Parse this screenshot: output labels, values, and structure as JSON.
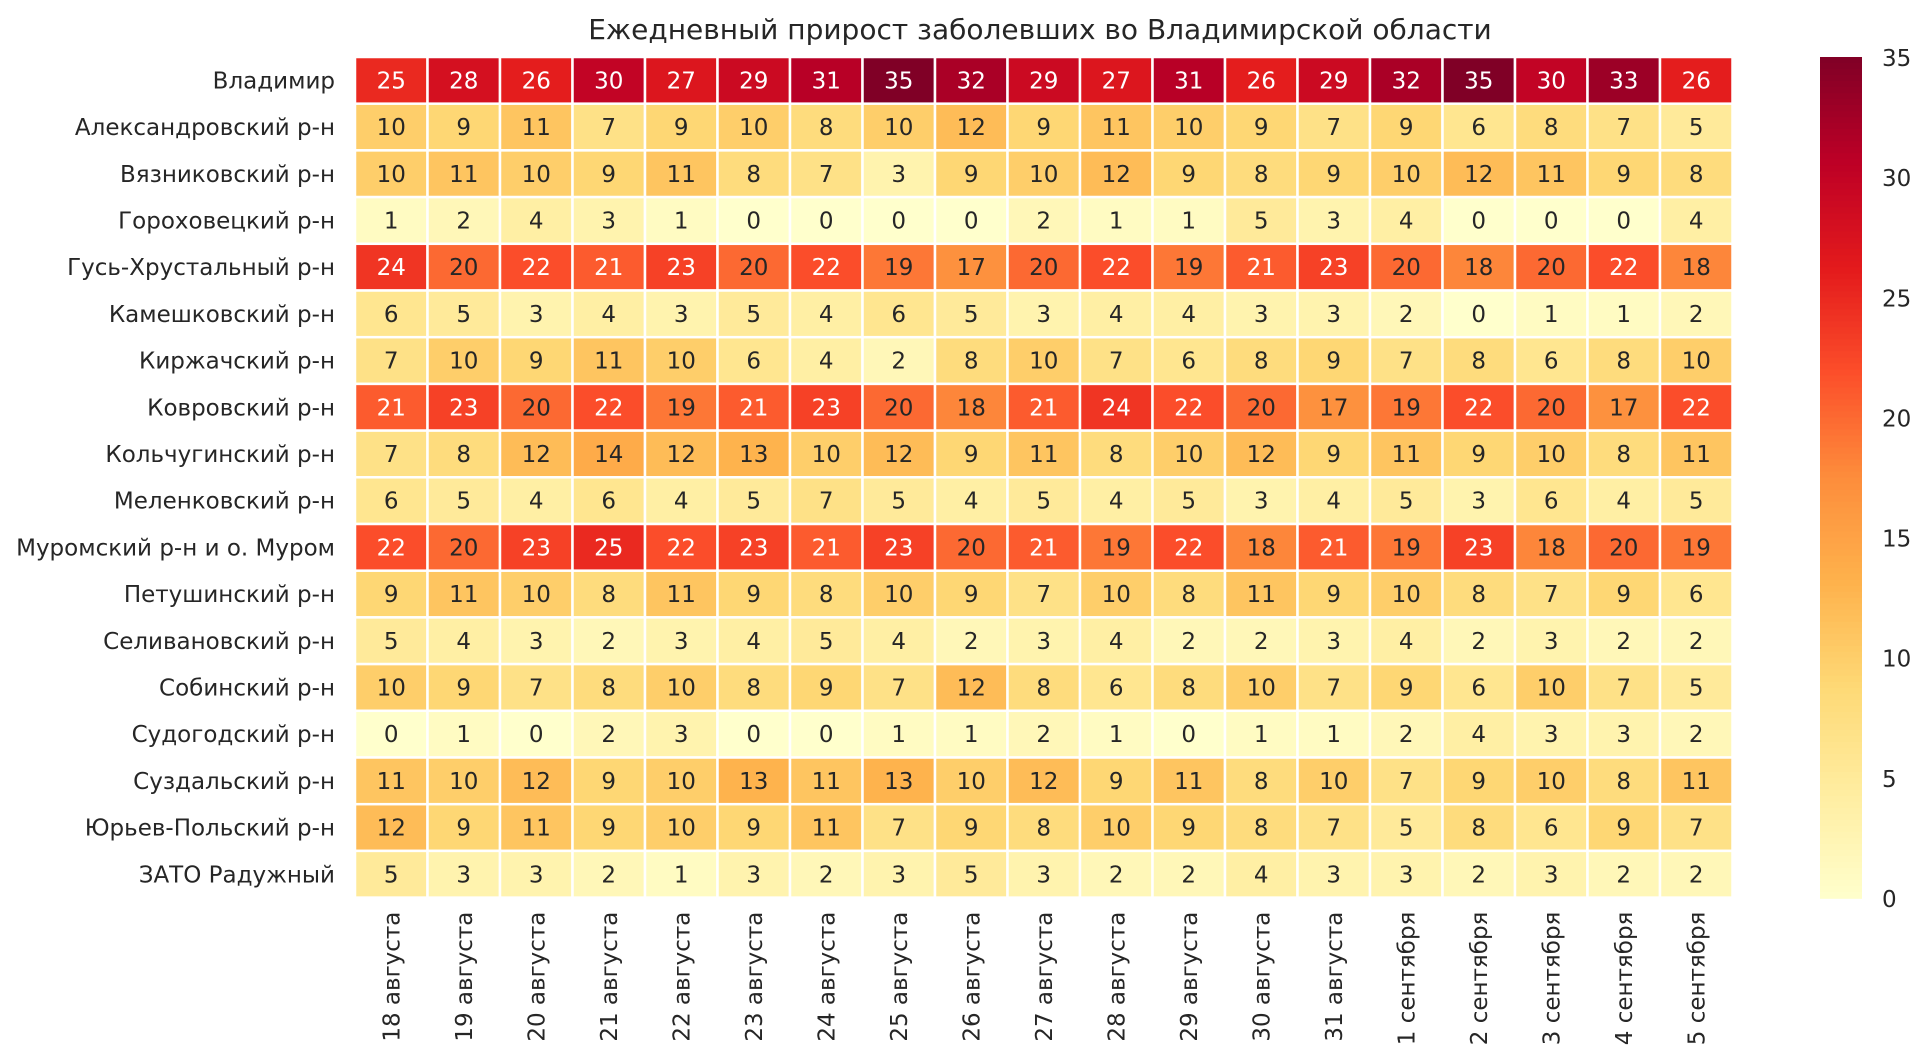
{
  "chart_data": {
    "type": "heatmap",
    "title": "Ежедневный прирост заболевших во Владимирской области",
    "xlabel": "",
    "ylabel": "",
    "rows": [
      "Владимир",
      "Александровский р-н",
      "Вязниковский р-н",
      "Гороховецкий р-н",
      "Гусь-Хрустальный р-н",
      "Камешковский р-н",
      "Киржачский р-н",
      "Ковровский р-н",
      "Кольчугинский р-н",
      "Меленковский р-н",
      "Муромский р-н и о. Муром",
      "Петушинский р-н",
      "Селивановский р-н",
      "Собинский р-н",
      "Судогодский р-н",
      "Суздальский р-н",
      "Юрьев-Польский р-н",
      "ЗАТО Радужный"
    ],
    "columns": [
      "18 августа",
      "19 августа",
      "20 августа",
      "21 августа",
      "22 августа",
      "23 августа",
      "24 августа",
      "25 августа",
      "26 августа",
      "27 августа",
      "28 августа",
      "29 августа",
      "30 августа",
      "31 августа",
      "1 сентября",
      "2 сентября",
      "3 сентября",
      "4 сентября",
      "5 сентября"
    ],
    "values": [
      [
        25,
        28,
        26,
        30,
        27,
        29,
        31,
        35,
        32,
        29,
        27,
        31,
        26,
        29,
        32,
        35,
        30,
        33,
        26
      ],
      [
        10,
        9,
        11,
        7,
        9,
        10,
        8,
        10,
        12,
        9,
        11,
        10,
        9,
        7,
        9,
        6,
        8,
        7,
        5
      ],
      [
        10,
        11,
        10,
        9,
        11,
        8,
        7,
        3,
        9,
        10,
        12,
        9,
        8,
        9,
        10,
        12,
        11,
        9,
        8
      ],
      [
        1,
        2,
        4,
        3,
        1,
        0,
        0,
        0,
        0,
        2,
        1,
        1,
        5,
        3,
        4,
        0,
        0,
        0,
        4
      ],
      [
        24,
        20,
        22,
        21,
        23,
        20,
        22,
        19,
        17,
        20,
        22,
        19,
        21,
        23,
        20,
        18,
        20,
        22,
        18
      ],
      [
        6,
        5,
        3,
        4,
        3,
        5,
        4,
        6,
        5,
        3,
        4,
        4,
        3,
        3,
        2,
        0,
        1,
        1,
        2
      ],
      [
        7,
        10,
        9,
        11,
        10,
        6,
        4,
        2,
        8,
        10,
        7,
        6,
        8,
        9,
        7,
        8,
        6,
        8,
        10
      ],
      [
        21,
        23,
        20,
        22,
        19,
        21,
        23,
        20,
        18,
        21,
        24,
        22,
        20,
        17,
        19,
        22,
        20,
        17,
        22
      ],
      [
        7,
        8,
        12,
        14,
        12,
        13,
        10,
        12,
        9,
        11,
        8,
        10,
        12,
        9,
        11,
        9,
        10,
        8,
        11
      ],
      [
        6,
        5,
        4,
        6,
        4,
        5,
        7,
        5,
        4,
        5,
        4,
        5,
        3,
        4,
        5,
        3,
        6,
        4,
        5
      ],
      [
        22,
        20,
        23,
        25,
        22,
        23,
        21,
        23,
        20,
        21,
        19,
        22,
        18,
        21,
        19,
        23,
        18,
        20,
        19
      ],
      [
        9,
        11,
        10,
        8,
        11,
        9,
        8,
        10,
        9,
        7,
        10,
        8,
        11,
        9,
        10,
        8,
        7,
        9,
        6
      ],
      [
        5,
        4,
        3,
        2,
        3,
        4,
        5,
        4,
        2,
        3,
        4,
        2,
        2,
        3,
        4,
        2,
        3,
        2,
        2
      ],
      [
        10,
        9,
        7,
        8,
        10,
        8,
        9,
        7,
        12,
        8,
        6,
        8,
        10,
        7,
        9,
        6,
        10,
        7,
        5
      ],
      [
        0,
        1,
        0,
        2,
        3,
        0,
        0,
        1,
        1,
        2,
        1,
        0,
        1,
        1,
        2,
        4,
        3,
        3,
        2
      ],
      [
        11,
        10,
        12,
        9,
        10,
        13,
        11,
        13,
        10,
        12,
        9,
        11,
        8,
        10,
        7,
        9,
        10,
        8,
        11
      ],
      [
        12,
        9,
        11,
        9,
        10,
        9,
        11,
        7,
        9,
        8,
        10,
        9,
        8,
        7,
        5,
        8,
        6,
        9,
        7
      ],
      [
        5,
        3,
        3,
        2,
        1,
        3,
        2,
        3,
        5,
        3,
        2,
        2,
        4,
        3,
        3,
        2,
        3,
        2,
        2
      ]
    ],
    "colorbar": {
      "min": 0,
      "max": 35,
      "ticks": [
        0,
        5,
        10,
        15,
        20,
        25,
        30,
        35
      ],
      "colormap": "YlOrRd",
      "colors": [
        "#ffffcc",
        "#ffeda0",
        "#fed976",
        "#feb24c",
        "#fd8d3c",
        "#fc4e2a",
        "#e31a1c",
        "#bd0026",
        "#800026"
      ]
    },
    "text_dark": "#262626",
    "text_light": "#ffffff",
    "grid_line_color": "#ffffff"
  }
}
